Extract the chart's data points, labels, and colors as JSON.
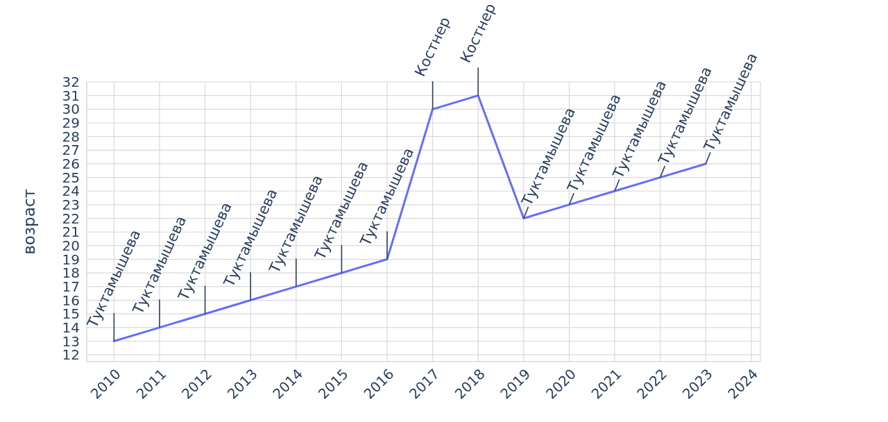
{
  "chart_data": {
    "type": "line",
    "ylabel": "возраст",
    "x": [
      2010,
      2011,
      2012,
      2013,
      2014,
      2015,
      2016,
      2017,
      2018,
      2019,
      2020,
      2021,
      2022,
      2023
    ],
    "values": [
      13,
      14,
      15,
      16,
      17,
      18,
      19,
      30,
      31,
      22,
      23,
      24,
      25,
      26
    ],
    "color": "#636efa",
    "xlim": [
      2009.4,
      2024.2
    ],
    "ylim": [
      11.5,
      32
    ],
    "xticks": [
      2010,
      2011,
      2012,
      2013,
      2014,
      2015,
      2016,
      2017,
      2018,
      2019,
      2020,
      2021,
      2022,
      2023,
      2024
    ],
    "yticks": [
      12,
      13,
      14,
      15,
      16,
      17,
      18,
      19,
      20,
      21,
      22,
      23,
      24,
      25,
      26,
      27,
      28,
      29,
      30,
      31,
      32
    ],
    "grid": true,
    "annotations": [
      {
        "text": "Туктамышева",
        "x": 2010,
        "y": 13
      },
      {
        "text": "Туктамышева",
        "x": 2011,
        "y": 14
      },
      {
        "text": "Туктамышева",
        "x": 2012,
        "y": 15
      },
      {
        "text": "Туктамышева",
        "x": 2013,
        "y": 16
      },
      {
        "text": "Туктамышева",
        "x": 2014,
        "y": 17
      },
      {
        "text": "Туктамышева",
        "x": 2015,
        "y": 18
      },
      {
        "text": "Туктамышева",
        "x": 2016,
        "y": 19
      },
      {
        "text": "Костнер",
        "x": 2017,
        "y": 30
      },
      {
        "text": "Костнер",
        "x": 2018,
        "y": 31
      },
      {
        "text": "Туктамышева",
        "x": 2019,
        "y": 22
      },
      {
        "text": "Туктамышева",
        "x": 2020,
        "y": 23
      },
      {
        "text": "Туктамышева",
        "x": 2021,
        "y": 24
      },
      {
        "text": "Туктамышева",
        "x": 2022,
        "y": 25
      },
      {
        "text": "Туктамышева",
        "x": 2023,
        "y": 26
      }
    ]
  }
}
